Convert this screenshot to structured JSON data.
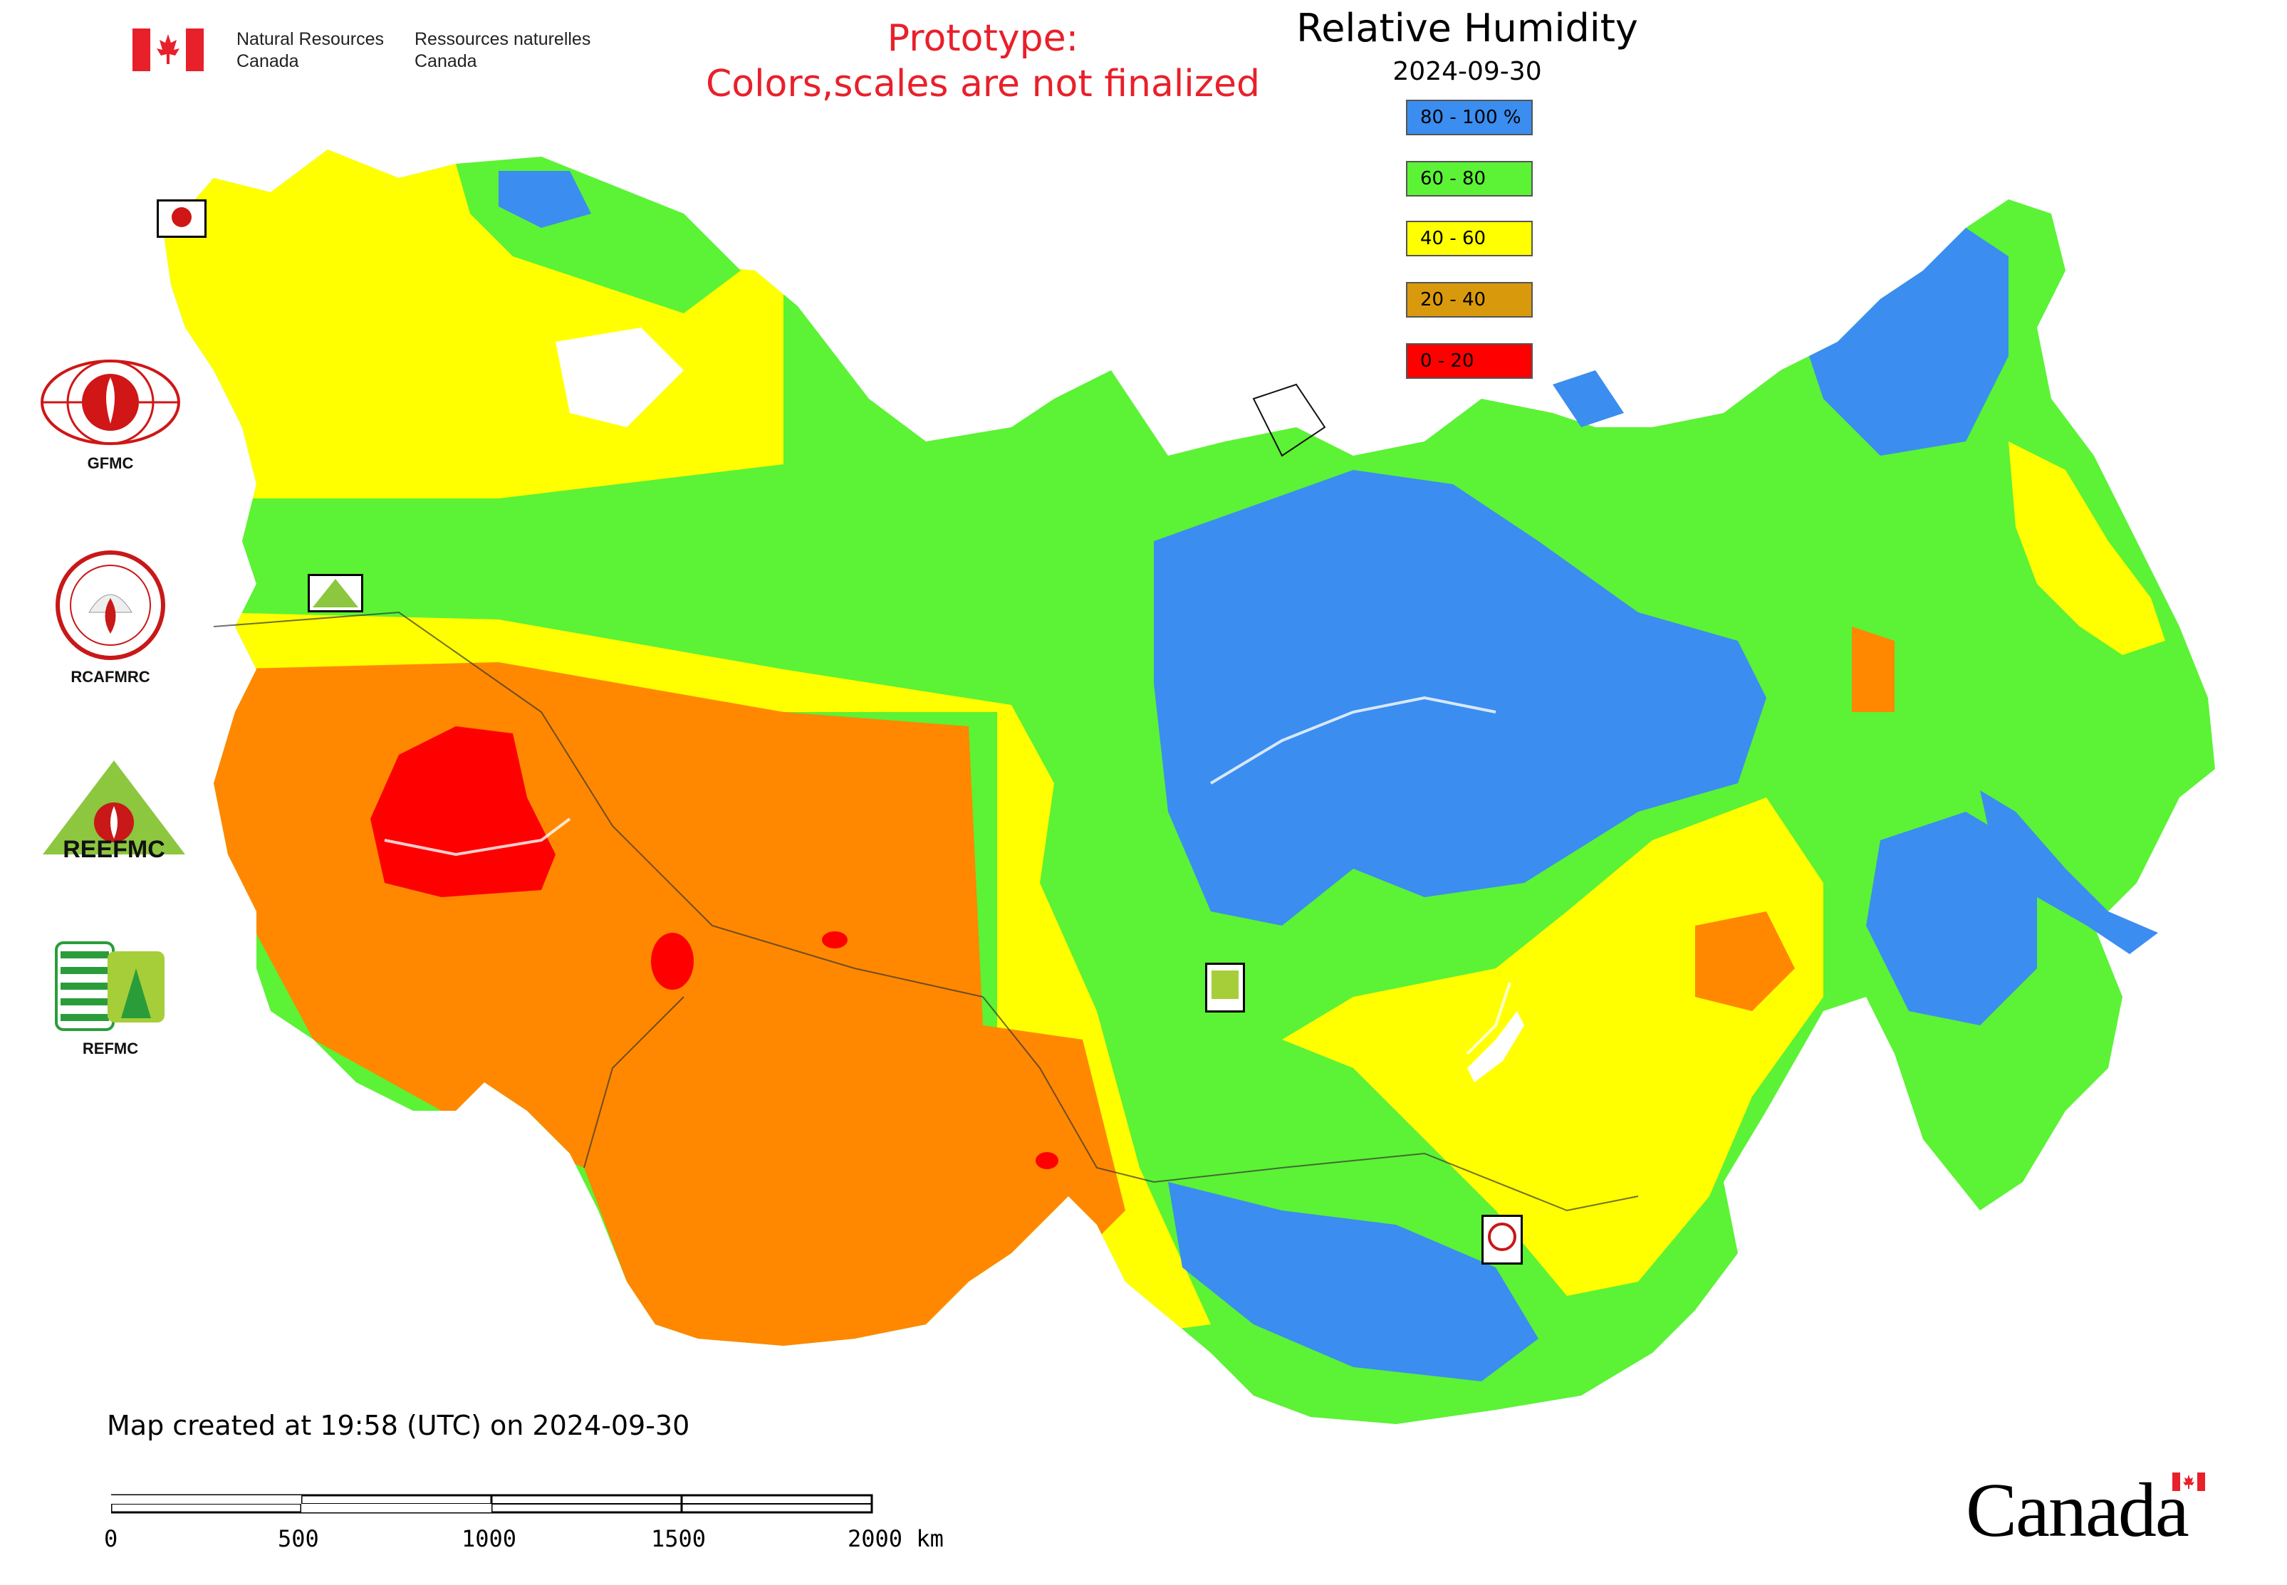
{
  "header": {
    "org_en_line1": "Natural Resources",
    "org_en_line2": "Canada",
    "org_fr_line1": "Ressources naturelles",
    "org_fr_line2": "Canada"
  },
  "notice": {
    "line1": "Prototype:",
    "line2": "Colors,scales are not finalized"
  },
  "legend": {
    "title": "Relative Humidity",
    "date": "2024-09-30",
    "items": [
      {
        "label": "80 - 100 %",
        "color": "#3b8df0"
      },
      {
        "label": "60 - 80",
        "color": "#5cf236"
      },
      {
        "label": "40 - 60",
        "color": "#ffff00"
      },
      {
        "label": "20 - 40",
        "color": "#d89a0c"
      },
      {
        "label": "0 - 20",
        "color": "#ff0000"
      }
    ]
  },
  "organizations": [
    {
      "label": "GFMC",
      "icon": "gfmc-logo"
    },
    {
      "label": "RCAFMRC",
      "icon": "rcafmrc-logo"
    },
    {
      "label": "",
      "icon": "reefmc-logo",
      "wordmark": "REEFMC"
    },
    {
      "label": "REFMC",
      "icon": "refmc-logo"
    }
  ],
  "small_markers": [
    "GFMC",
    "REEFMC",
    "REFMC",
    "RCAFMRC"
  ],
  "footer": {
    "created": "Map created at 19:58 (UTC) on 2024-09-30",
    "scale_labels": [
      "0",
      "500",
      "1000",
      "1500",
      "2000 km"
    ],
    "wordmark": "Canada"
  },
  "colors": {
    "humid_blue": "#3b8df0",
    "green": "#5cf236",
    "yellow": "#ffff00",
    "orange": "#ff8800",
    "red": "#ff0000",
    "accent_red": "#e8202a"
  }
}
